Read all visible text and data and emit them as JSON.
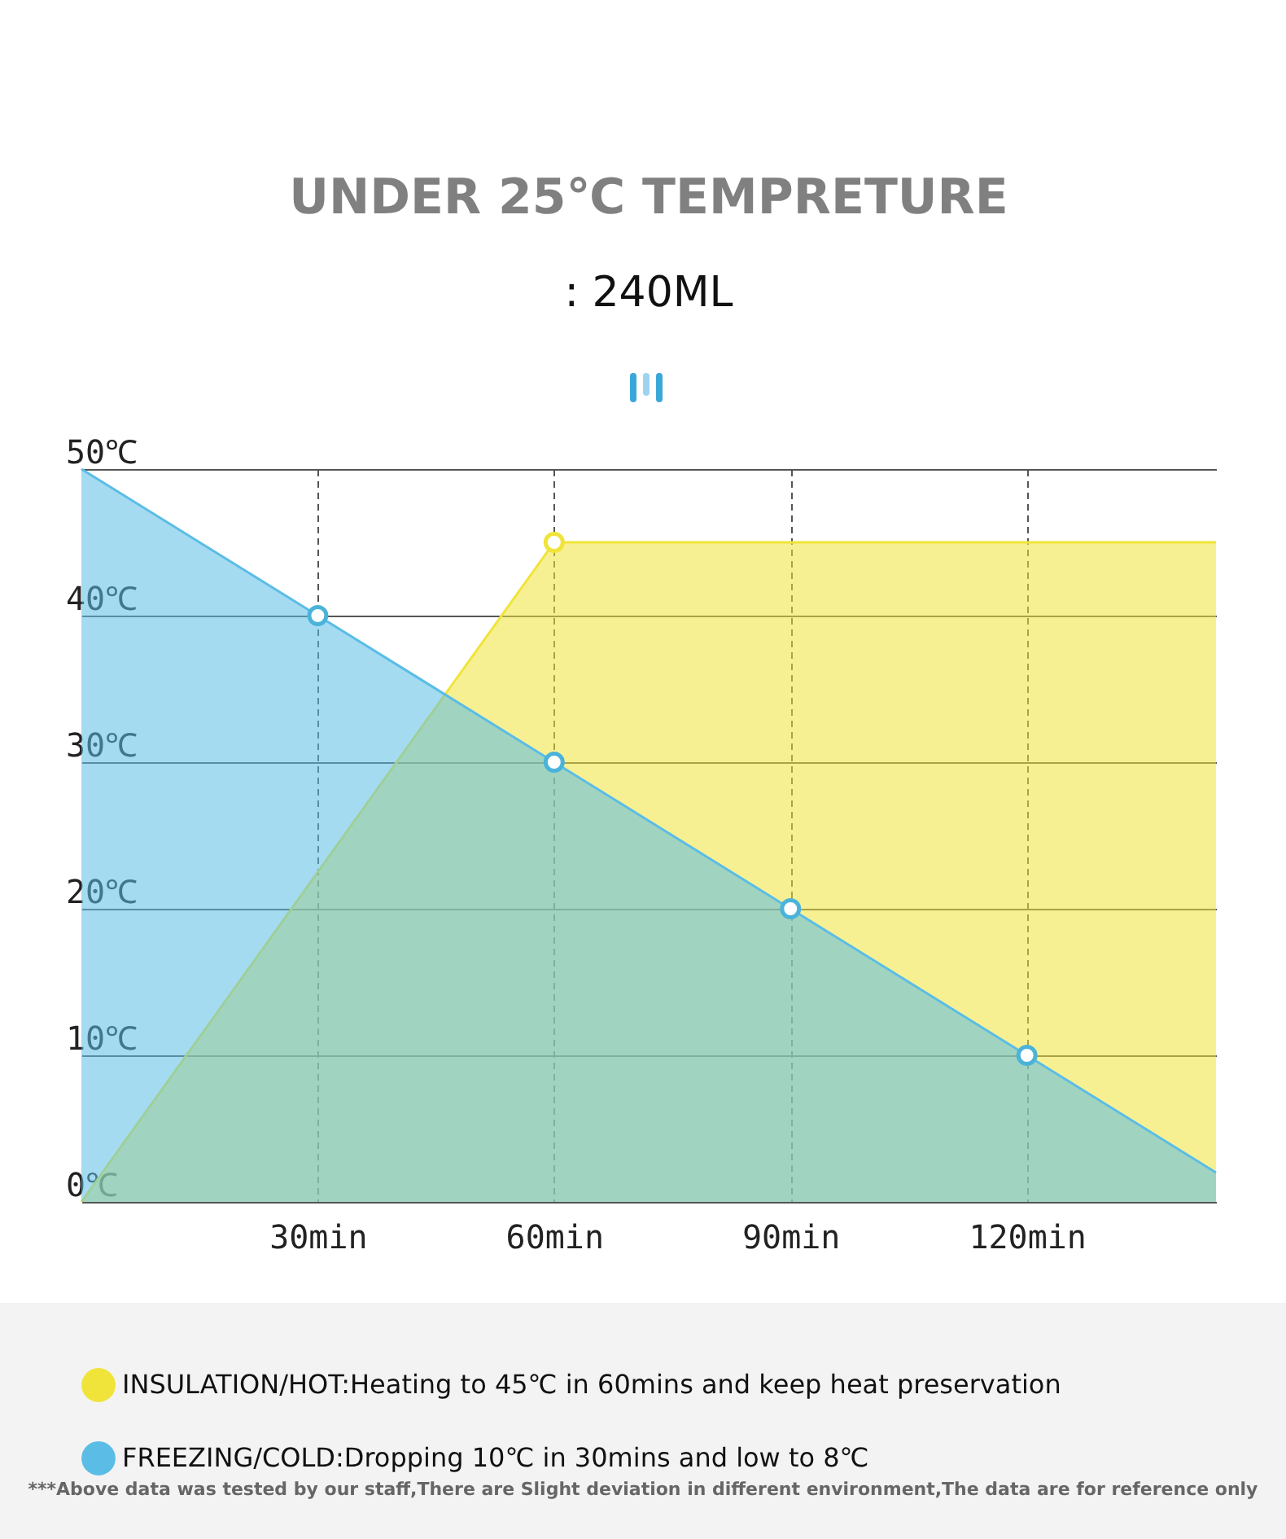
{
  "chart_data": {
    "type": "area",
    "title": "UNDER 25℃ TEMPRETURE",
    "subtitle": ": 240ML",
    "series": [
      {
        "name": "INSULATION/HOT:Heating to 45℃ in 60mins and keep heat preservation",
        "color": "#f0e43a",
        "x": [
          0,
          60,
          144
        ],
        "values": [
          0,
          45,
          45
        ]
      },
      {
        "name": "FREEZING/COLD:Dropping 10℃ in 30mins and low to 8℃",
        "color": "#5bbde6",
        "x": [
          0,
          30,
          60,
          90,
          120,
          144
        ],
        "values": [
          50,
          40,
          30,
          20,
          10,
          2
        ]
      },
      {
        "type": "scatter",
        "color": "#4bb3d9",
        "x": [
          30,
          60,
          90,
          120
        ],
        "values": [
          40,
          30,
          20,
          10
        ]
      },
      {
        "type": "scatter",
        "color": "#f0e43a",
        "x": [
          60
        ],
        "values": [
          45
        ]
      }
    ],
    "xlim": [
      0,
      144
    ],
    "xticks": [
      {
        "value": 30,
        "label": "30min"
      },
      {
        "value": 60,
        "label": "60min"
      },
      {
        "value": 90,
        "label": "90min"
      },
      {
        "value": 120,
        "label": "120min"
      }
    ],
    "ylim": [
      0,
      50
    ],
    "yticks": [
      {
        "value": 0,
        "label": "0℃"
      },
      {
        "value": 10,
        "label": "10℃"
      },
      {
        "value": 20,
        "label": "20℃"
      },
      {
        "value": 30,
        "label": "30℃"
      },
      {
        "value": 40,
        "label": "40℃"
      },
      {
        "value": 50,
        "label": "50℃"
      }
    ],
    "grid": true,
    "legend": "bottom",
    "annotations": [
      "***Above data was tested by our staff,There are Slight deviation in different environment,The data are for reference only"
    ]
  }
}
